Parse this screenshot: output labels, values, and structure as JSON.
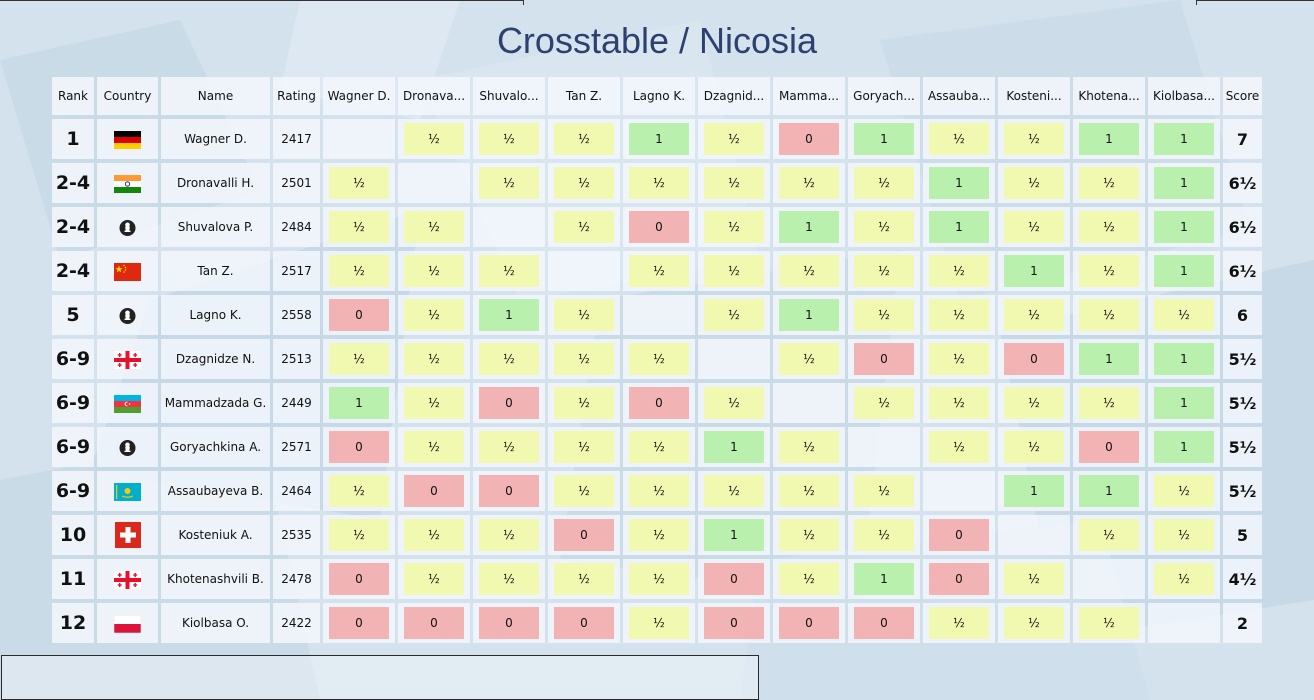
{
  "title": "Crosstable / Nicosia",
  "headers": {
    "rank": "Rank",
    "country": "Country",
    "name": "Name",
    "rating": "Rating",
    "score": "Score",
    "opponents": [
      "Wagner D.",
      "Dronava...",
      "Shuvalo...",
      "Tan Z.",
      "Lagno K.",
      "Dzagnid...",
      "Mamma...",
      "Goryach...",
      "Assauba...",
      "Kosteni...",
      "Khotena...",
      "Kiolbasa..."
    ]
  },
  "colors": {
    "win": "#b9f0ad",
    "draw": "#f1f8b0",
    "loss": "#f1b3b3",
    "title": "#2d4170"
  },
  "players": [
    {
      "rank": "1",
      "flag": "germany-flag",
      "name": "Wagner D.",
      "rating": "2417",
      "score": "7",
      "results": [
        "",
        "½",
        "½",
        "½",
        "1",
        "½",
        "0",
        "1",
        "½",
        "½",
        "1",
        "1"
      ]
    },
    {
      "rank": "2-4",
      "flag": "india-flag",
      "name": "Dronavalli H.",
      "rating": "2501",
      "score": "6½",
      "results": [
        "½",
        "",
        "½",
        "½",
        "½",
        "½",
        "½",
        "½",
        "1",
        "½",
        "½",
        "1"
      ]
    },
    {
      "rank": "2-4",
      "flag": "fide-flag",
      "name": "Shuvalova P.",
      "rating": "2484",
      "score": "6½",
      "results": [
        "½",
        "½",
        "",
        "½",
        "0",
        "½",
        "1",
        "½",
        "1",
        "½",
        "½",
        "1"
      ]
    },
    {
      "rank": "2-4",
      "flag": "china-flag",
      "name": "Tan Z.",
      "rating": "2517",
      "score": "6½",
      "results": [
        "½",
        "½",
        "½",
        "",
        "½",
        "½",
        "½",
        "½",
        "½",
        "1",
        "½",
        "1"
      ]
    },
    {
      "rank": "5",
      "flag": "fide-flag",
      "name": "Lagno K.",
      "rating": "2558",
      "score": "6",
      "results": [
        "0",
        "½",
        "1",
        "½",
        "",
        "½",
        "1",
        "½",
        "½",
        "½",
        "½",
        "½"
      ]
    },
    {
      "rank": "6-9",
      "flag": "georgia-flag",
      "name": "Dzagnidze N.",
      "rating": "2513",
      "score": "5½",
      "results": [
        "½",
        "½",
        "½",
        "½",
        "½",
        "",
        "½",
        "0",
        "½",
        "0",
        "1",
        "1"
      ]
    },
    {
      "rank": "6-9",
      "flag": "azerbaijan-flag",
      "name": "Mammadzada G.",
      "rating": "2449",
      "score": "5½",
      "results": [
        "1",
        "½",
        "0",
        "½",
        "0",
        "½",
        "",
        "½",
        "½",
        "½",
        "½",
        "1"
      ]
    },
    {
      "rank": "6-9",
      "flag": "fide-flag",
      "name": "Goryachkina A.",
      "rating": "2571",
      "score": "5½",
      "results": [
        "0",
        "½",
        "½",
        "½",
        "½",
        "1",
        "½",
        "",
        "½",
        "½",
        "0",
        "1"
      ]
    },
    {
      "rank": "6-9",
      "flag": "kazakhstan-flag",
      "name": "Assaubayeva B.",
      "rating": "2464",
      "score": "5½",
      "results": [
        "½",
        "0",
        "0",
        "½",
        "½",
        "½",
        "½",
        "½",
        "",
        "1",
        "1",
        "½"
      ]
    },
    {
      "rank": "10",
      "flag": "switzerland-flag",
      "name": "Kosteniuk A.",
      "rating": "2535",
      "score": "5",
      "results": [
        "½",
        "½",
        "½",
        "0",
        "½",
        "1",
        "½",
        "½",
        "0",
        "",
        "½",
        "½"
      ]
    },
    {
      "rank": "11",
      "flag": "georgia-flag",
      "name": "Khotenashvili B.",
      "rating": "2478",
      "score": "4½",
      "results": [
        "0",
        "½",
        "½",
        "½",
        "½",
        "0",
        "½",
        "1",
        "0",
        "½",
        "",
        "½"
      ]
    },
    {
      "rank": "12",
      "flag": "poland-flag",
      "name": "Kiolbasa O.",
      "rating": "2422",
      "score": "2",
      "results": [
        "0",
        "0",
        "0",
        "0",
        "½",
        "0",
        "0",
        "0",
        "½",
        "½",
        "½",
        ""
      ]
    }
  ]
}
